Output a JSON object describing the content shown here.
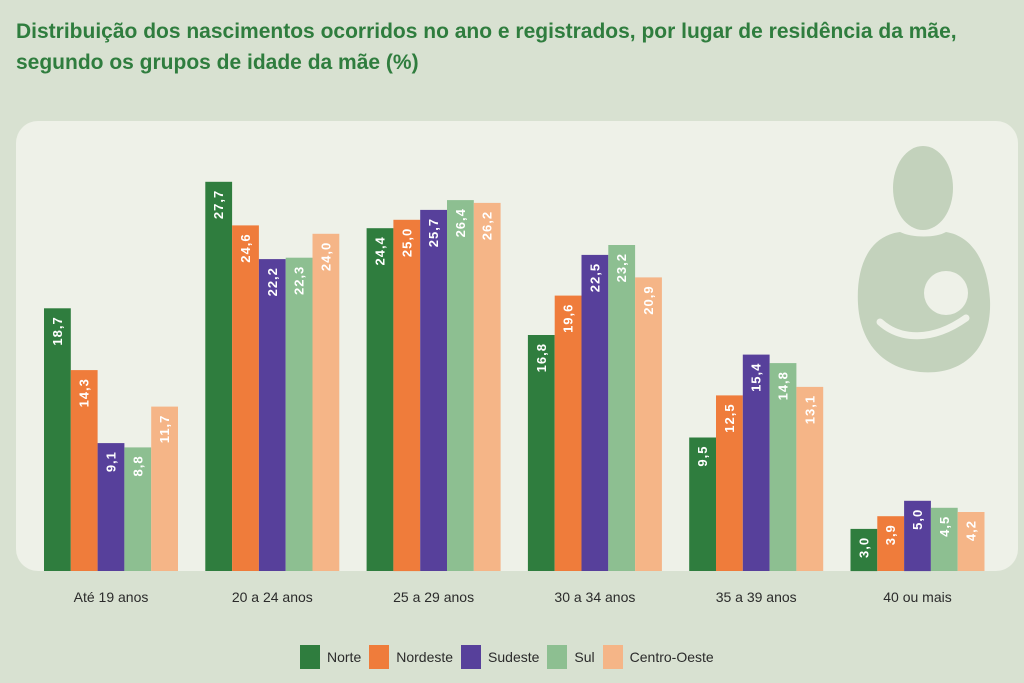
{
  "chart_data": {
    "type": "bar",
    "title_lines": [
      "Distribuição dos nascimentos ocorridos no ano e registrados, por lugar de residência da mãe,",
      "segundo os grupos de idade da mãe (%)"
    ],
    "categories": [
      "Até 19 anos",
      "20 a 24 anos",
      "25 a 29 anos",
      "30 a 34 anos",
      "35 a 39 anos",
      "40 ou mais"
    ],
    "series": [
      {
        "name": "Norte",
        "color": "#2f7d3e",
        "values": [
          18.7,
          27.7,
          24.4,
          16.8,
          9.5,
          3.0
        ],
        "labels": [
          "18,7",
          "27,7",
          "24,4",
          "16,8",
          "9,5",
          "3,0"
        ]
      },
      {
        "name": "Nordeste",
        "color": "#ef7c3b",
        "values": [
          14.3,
          24.6,
          25.0,
          19.6,
          12.5,
          3.9
        ],
        "labels": [
          "14,3",
          "24,6",
          "25,0",
          "19,6",
          "12,5",
          "3,9"
        ]
      },
      {
        "name": "Sudeste",
        "color": "#57409b",
        "values": [
          9.1,
          22.2,
          25.7,
          22.5,
          15.4,
          5.0
        ],
        "labels": [
          "9,1",
          "22,2",
          "25,7",
          "22,5",
          "15,4",
          "5,0"
        ]
      },
      {
        "name": "Sul",
        "color": "#8dbf91",
        "values": [
          8.8,
          22.3,
          26.4,
          23.2,
          14.8,
          4.5
        ],
        "labels": [
          "8,8",
          "22,3",
          "26,4",
          "23,2",
          "14,8",
          "4,5"
        ]
      },
      {
        "name": "Centro-Oeste",
        "color": "#f5b587",
        "values": [
          11.7,
          24.0,
          26.2,
          20.9,
          13.1,
          4.2
        ],
        "labels": [
          "11,7",
          "24,0",
          "26,2",
          "20,9",
          "13,1",
          "4,2"
        ]
      }
    ],
    "ylim": [
      0,
      30
    ],
    "grid": false,
    "legend_position": "bottom"
  },
  "decoration": {
    "icon": "mother-breastfeeding-icon",
    "icon_color": "#c3d2bc"
  }
}
